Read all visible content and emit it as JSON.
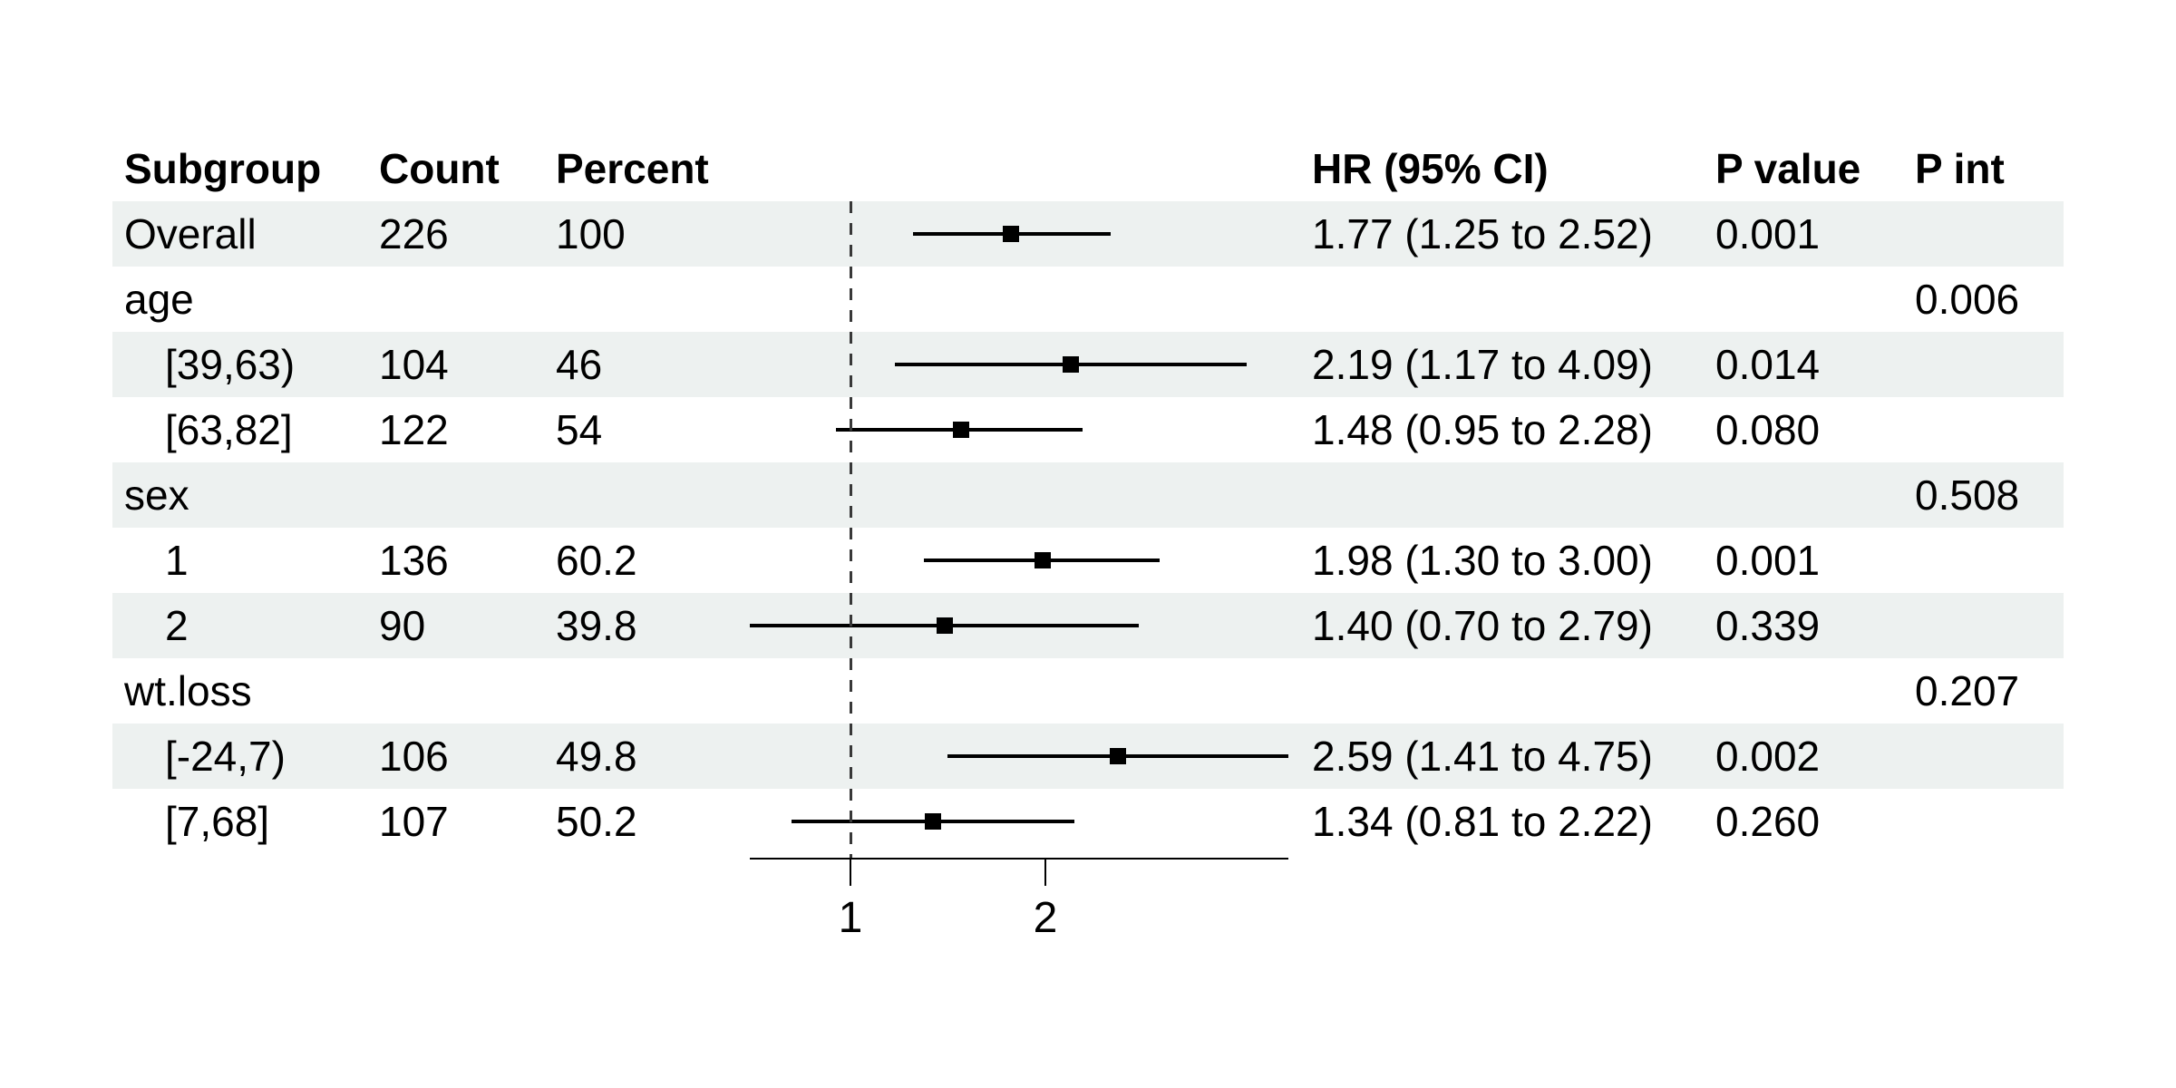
{
  "table": {
    "headers": {
      "subgroup": "Subgroup",
      "count": "Count",
      "percent": "Percent",
      "hr_ci": "HR (95% CI)",
      "p_value": "P value",
      "p_int": "P int"
    }
  },
  "chart_data": {
    "type": "forest",
    "x_axis": {
      "scale": "log2",
      "ticks": [
        1,
        2
      ],
      "range": [
        0.7,
        4.75
      ],
      "ref_line": 1
    },
    "rows": [
      {
        "subgroup": "Overall",
        "indent": false,
        "count": "226",
        "percent": "100",
        "hr": 1.77,
        "lo": 1.25,
        "hi": 2.52,
        "hr_ci": "1.77 (1.25 to 2.52)",
        "p_value": "0.001",
        "p_int": ""
      },
      {
        "subgroup": "age",
        "indent": false,
        "count": "",
        "percent": "",
        "hr": null,
        "lo": null,
        "hi": null,
        "hr_ci": "",
        "p_value": "",
        "p_int": "0.006"
      },
      {
        "subgroup": "[39,63)",
        "indent": true,
        "count": "104",
        "percent": "46",
        "hr": 2.19,
        "lo": 1.17,
        "hi": 4.09,
        "hr_ci": "2.19 (1.17 to 4.09)",
        "p_value": "0.014",
        "p_int": ""
      },
      {
        "subgroup": "[63,82]",
        "indent": true,
        "count": "122",
        "percent": "54",
        "hr": 1.48,
        "lo": 0.95,
        "hi": 2.28,
        "hr_ci": "1.48 (0.95 to 2.28)",
        "p_value": "0.080",
        "p_int": ""
      },
      {
        "subgroup": "sex",
        "indent": false,
        "count": "",
        "percent": "",
        "hr": null,
        "lo": null,
        "hi": null,
        "hr_ci": "",
        "p_value": "",
        "p_int": "0.508"
      },
      {
        "subgroup": "1",
        "indent": true,
        "count": "136",
        "percent": "60.2",
        "hr": 1.98,
        "lo": 1.3,
        "hi": 3.0,
        "hr_ci": "1.98 (1.30 to 3.00)",
        "p_value": "0.001",
        "p_int": ""
      },
      {
        "subgroup": "2",
        "indent": true,
        "count": "90",
        "percent": "39.8",
        "hr": 1.4,
        "lo": 0.7,
        "hi": 2.79,
        "hr_ci": "1.40 (0.70 to 2.79)",
        "p_value": "0.339",
        "p_int": ""
      },
      {
        "subgroup": "wt.loss",
        "indent": false,
        "count": "",
        "percent": "",
        "hr": null,
        "lo": null,
        "hi": null,
        "hr_ci": "",
        "p_value": "",
        "p_int": "0.207"
      },
      {
        "subgroup": "[-24,7)",
        "indent": true,
        "count": "106",
        "percent": "49.8",
        "hr": 2.59,
        "lo": 1.41,
        "hi": 4.75,
        "hr_ci": "2.59 (1.41 to 4.75)",
        "p_value": "0.002",
        "p_int": ""
      },
      {
        "subgroup": "[7,68]",
        "indent": true,
        "count": "107",
        "percent": "50.2",
        "hr": 1.34,
        "lo": 0.81,
        "hi": 2.22,
        "hr_ci": "1.34 (0.81 to 2.22)",
        "p_value": "0.260",
        "p_int": ""
      }
    ]
  },
  "colors": {
    "band": "#edf1f0",
    "text": "#000000",
    "marker": "#000000",
    "ref_line": "#383838"
  }
}
